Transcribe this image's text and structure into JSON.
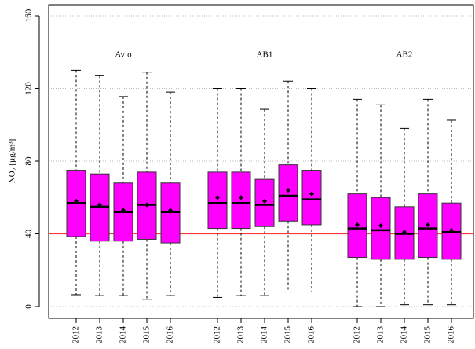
{
  "chart_data": {
    "type": "box",
    "ylabel": "NO₂ [µg/m³]",
    "ylim": [
      0,
      160
    ],
    "yticks": [
      0,
      40,
      80,
      120,
      160
    ],
    "grid": true,
    "box_color": "#ff00ff",
    "hline": 40,
    "hline_color": "#ff3b3b",
    "groups": [
      {
        "name": "Avio",
        "categories": [
          "2012",
          "2013",
          "2014",
          "2015",
          "2016"
        ],
        "whisker_low": [
          6.5,
          6,
          6,
          4,
          6
        ],
        "q1": [
          38.5,
          36,
          36,
          37,
          35
        ],
        "median": [
          57,
          55,
          52,
          56,
          52
        ],
        "q3": [
          75,
          73,
          68,
          74,
          68
        ],
        "whisker_high": [
          130,
          127,
          115.5,
          129,
          118
        ],
        "mean": [
          58,
          56,
          53,
          56,
          53
        ]
      },
      {
        "name": "AB1",
        "categories": [
          "2012",
          "2013",
          "2014",
          "2015",
          "2016"
        ],
        "whisker_low": [
          5,
          6,
          6,
          8,
          8
        ],
        "q1": [
          43,
          43,
          44,
          47,
          45
        ],
        "median": [
          57,
          57,
          56,
          61,
          59
        ],
        "q3": [
          74,
          74,
          70,
          78,
          75
        ],
        "whisker_high": [
          120,
          120,
          108.5,
          124,
          120
        ],
        "mean": [
          60,
          60,
          58,
          64,
          62
        ]
      },
      {
        "name": "AB2",
        "categories": [
          "2012",
          "2013",
          "2014",
          "2015",
          "2016"
        ],
        "whisker_low": [
          0,
          0,
          1,
          1,
          1
        ],
        "q1": [
          27,
          26,
          26,
          27,
          26
        ],
        "median": [
          43,
          42,
          40,
          43,
          41
        ],
        "q3": [
          62,
          60,
          55,
          62,
          57
        ],
        "whisker_high": [
          114,
          111,
          98,
          114,
          102.5
        ],
        "mean": [
          45,
          44.5,
          41,
          45,
          42
        ]
      }
    ]
  }
}
